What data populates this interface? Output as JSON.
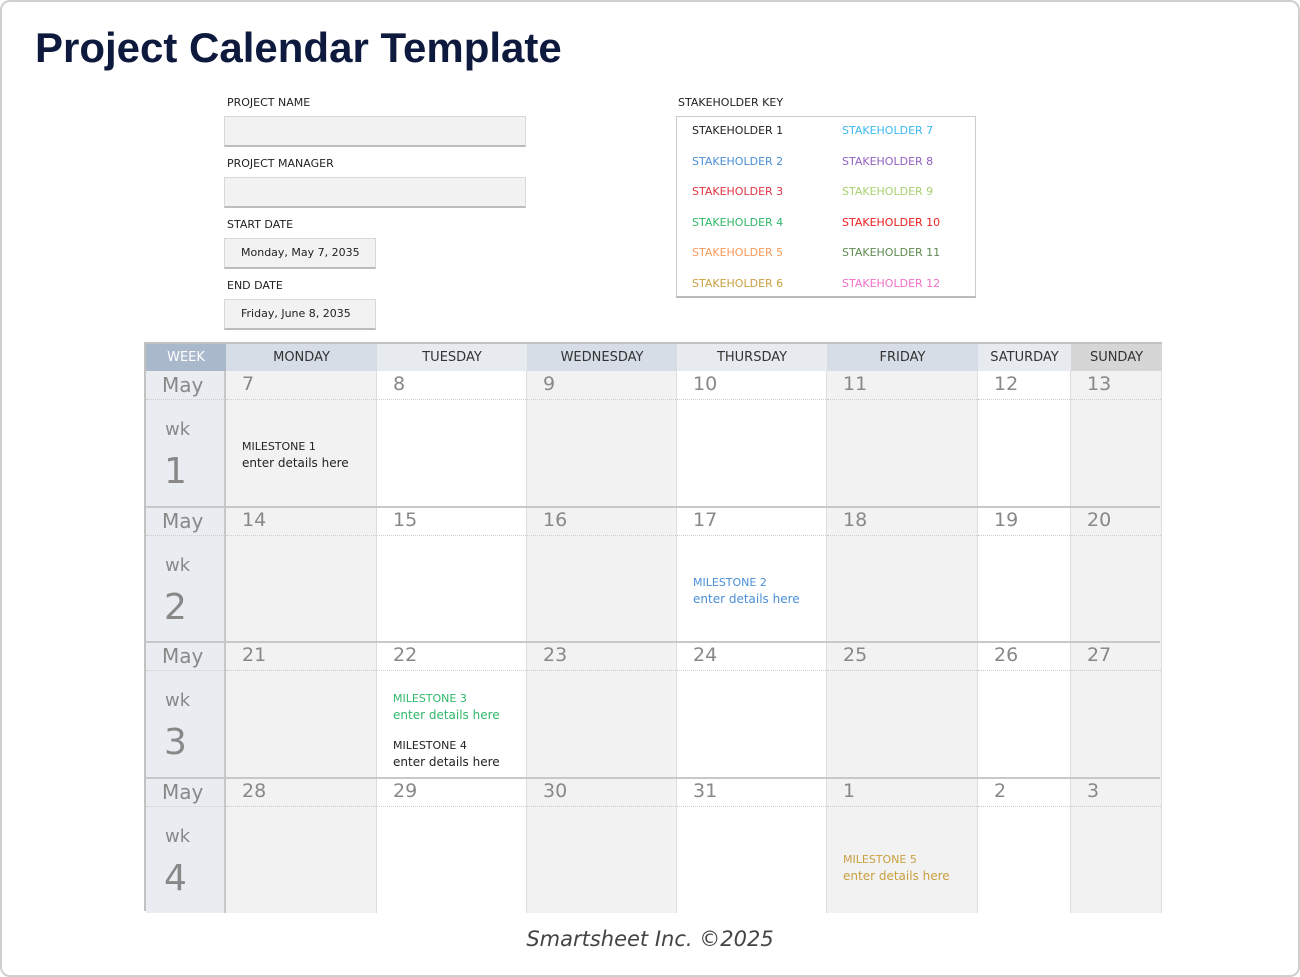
{
  "title": "Project Calendar Template",
  "form": {
    "project_name_label": "PROJECT NAME",
    "project_name": "",
    "project_manager_label": "PROJECT MANAGER",
    "project_manager": "",
    "start_date_label": "START DATE",
    "start_date": "Monday, May 7, 2035",
    "end_date_label": "END DATE",
    "end_date": "Friday, June 8, 2035"
  },
  "key": {
    "label": "STAKEHOLDER KEY",
    "items": [
      {
        "label": "STAKEHOLDER 1",
        "color": "#222222"
      },
      {
        "label": "STAKEHOLDER 2",
        "color": "#4a8fd6"
      },
      {
        "label": "STAKEHOLDER 3",
        "color": "#e03545"
      },
      {
        "label": "STAKEHOLDER 4",
        "color": "#2fb86a"
      },
      {
        "label": "STAKEHOLDER 5",
        "color": "#f59a5a"
      },
      {
        "label": "STAKEHOLDER 6",
        "color": "#c9a040"
      },
      {
        "label": "STAKEHOLDER 7",
        "color": "#3db8f0"
      },
      {
        "label": "STAKEHOLDER 8",
        "color": "#9160c0"
      },
      {
        "label": "STAKEHOLDER 9",
        "color": "#a8d070"
      },
      {
        "label": "STAKEHOLDER 10",
        "color": "#f02020"
      },
      {
        "label": "STAKEHOLDER 11",
        "color": "#5e8a50"
      },
      {
        "label": "STAKEHOLDER 12",
        "color": "#f070c8"
      }
    ]
  },
  "calendar": {
    "headers": [
      "WEEK",
      "MONDAY",
      "TUESDAY",
      "WEDNESDAY",
      "THURSDAY",
      "FRIDAY",
      "SATURDAY",
      "SUNDAY"
    ],
    "weeks": [
      {
        "month": "May",
        "wk": "wk",
        "n": "1",
        "days": [
          "7",
          "8",
          "9",
          "10",
          "11",
          "12",
          "13"
        ]
      },
      {
        "month": "May",
        "wk": "wk",
        "n": "2",
        "days": [
          "14",
          "15",
          "16",
          "17",
          "18",
          "19",
          "20"
        ]
      },
      {
        "month": "May",
        "wk": "wk",
        "n": "3",
        "days": [
          "21",
          "22",
          "23",
          "24",
          "25",
          "26",
          "27"
        ]
      },
      {
        "month": "May",
        "wk": "wk",
        "n": "4",
        "days": [
          "28",
          "29",
          "30",
          "31",
          "1",
          "2",
          "3"
        ]
      }
    ],
    "milestones": [
      {
        "week": 0,
        "day": 0,
        "slot": 0,
        "title": "MILESTONE 1",
        "details": "enter details here",
        "color": "#222222"
      },
      {
        "week": 1,
        "day": 3,
        "slot": 0,
        "title": "MILESTONE 2",
        "details": "enter details here",
        "color": "#4a8fd6"
      },
      {
        "week": 2,
        "day": 1,
        "slot": 1,
        "title": "MILESTONE 3",
        "details": "enter details here",
        "color": "#2fb86a"
      },
      {
        "week": 2,
        "day": 1,
        "slot": 2,
        "title": "MILESTONE 4",
        "details": "enter details here",
        "color": "#222222"
      },
      {
        "week": 3,
        "day": 4,
        "slot": 3,
        "title": "MILESTONE 5",
        "details": "enter details here",
        "color": "#c9a040"
      }
    ]
  },
  "footer": "Smartsheet Inc. ©2025"
}
